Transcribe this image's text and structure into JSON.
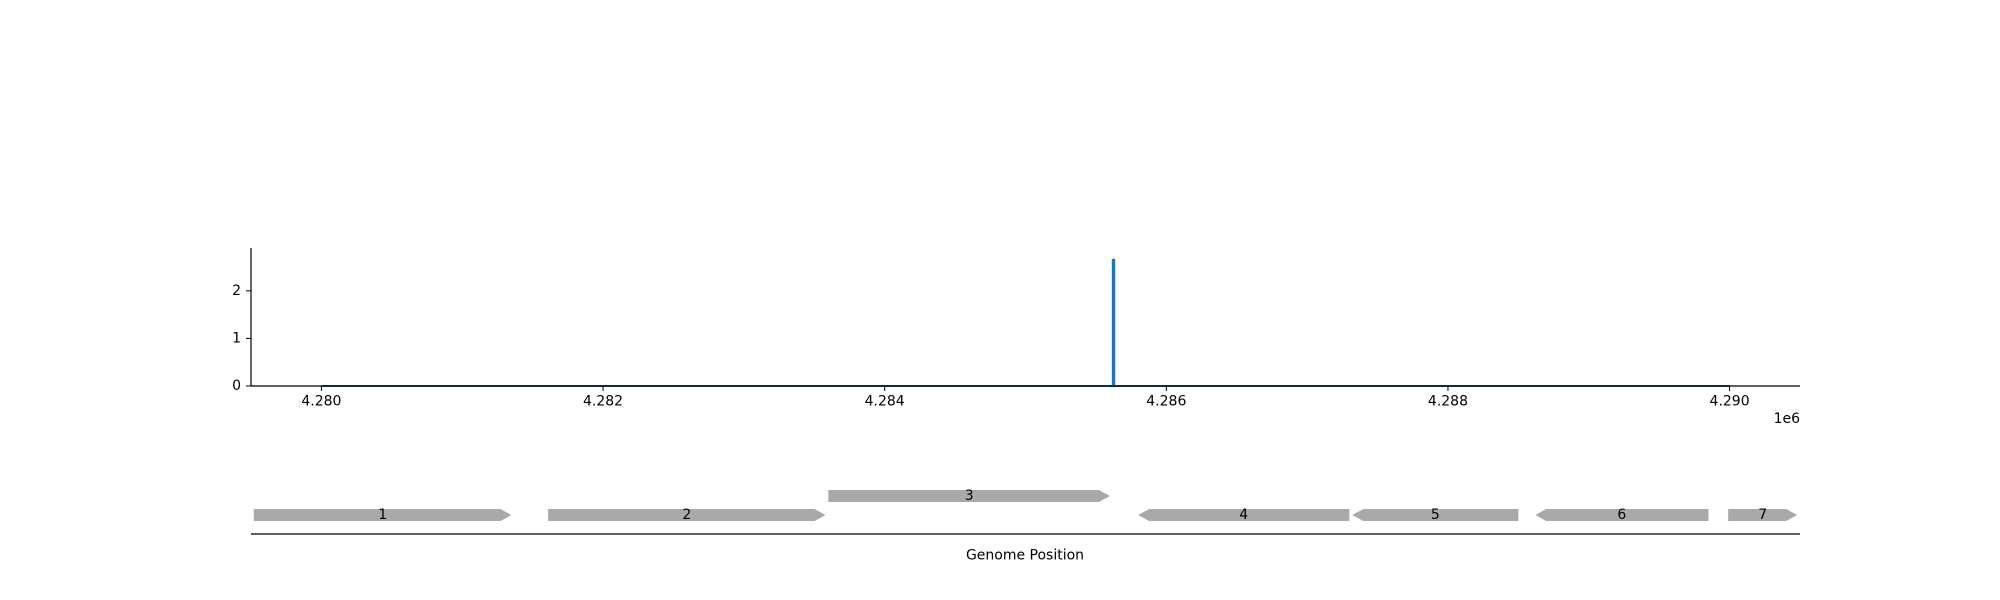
{
  "chart_data": {
    "type": "line",
    "title": "",
    "xlabel": "Genome Position",
    "ylabel": "",
    "x_offset_label": "1e6",
    "x_ticks": [
      4280000,
      4282000,
      4284000,
      4286000,
      4288000,
      4290000
    ],
    "x_tick_labels": [
      "4.280",
      "4.282",
      "4.284",
      "4.286",
      "4.288",
      "4.290"
    ],
    "y_ticks": [
      0,
      1,
      2
    ],
    "y_tick_labels": [
      "0",
      "1",
      "2"
    ],
    "xlim": [
      4279500,
      4290500
    ],
    "ylim": [
      0,
      2.9
    ],
    "grid": false,
    "series": [
      {
        "color": "#1f77b4",
        "x": [
          4280000,
          4285620,
          4285620,
          4285630,
          4285630,
          4290000
        ],
        "y": [
          0,
          0,
          2.65,
          2.65,
          0,
          0
        ]
      }
    ],
    "genes": [
      {
        "label": "1",
        "start": 4279520,
        "end": 4281350,
        "strand": "+",
        "row": 0
      },
      {
        "label": "2",
        "start": 4281610,
        "end": 4283580,
        "strand": "+",
        "row": 0
      },
      {
        "label": "3",
        "start": 4283600,
        "end": 4285600,
        "strand": "+",
        "row": 1
      },
      {
        "label": "4",
        "start": 4285800,
        "end": 4287300,
        "strand": "-",
        "row": 0
      },
      {
        "label": "5",
        "start": 4287320,
        "end": 4288500,
        "strand": "-",
        "row": 0
      },
      {
        "label": "6",
        "start": 4288620,
        "end": 4289850,
        "strand": "-",
        "row": 0
      },
      {
        "label": "7",
        "start": 4289990,
        "end": 4290480,
        "strand": "+",
        "row": 0
      }
    ],
    "gene_color": "#a9a9a9"
  }
}
